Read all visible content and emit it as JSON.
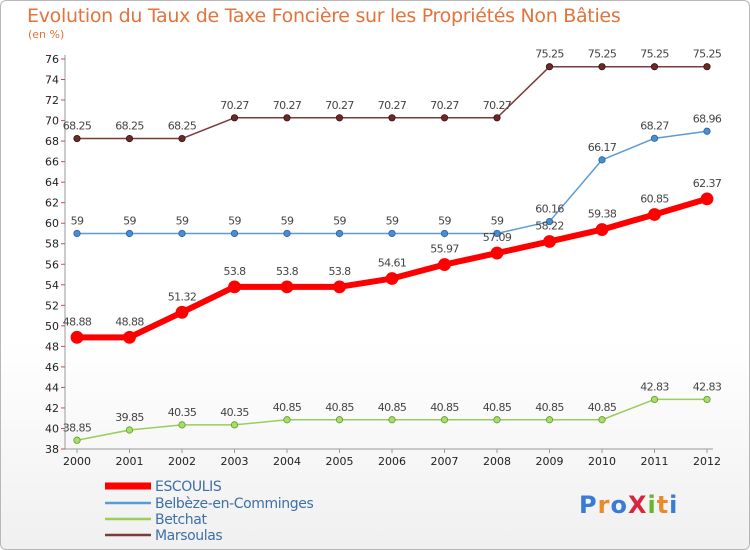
{
  "header": {
    "title": "Evolution du Taux de Taxe Foncière sur les Propriétés Non Bâties",
    "unit": "(en %)"
  },
  "logo": {
    "text": "ProXiti"
  },
  "colors": {
    "escoulis": "#ff0000",
    "belbeze": "#5b9bd5",
    "betchat": "#9acd5a",
    "marsoulas": "#7a3b3b"
  },
  "chart_data": {
    "type": "line",
    "title": "Evolution du Taux de Taxe Foncière sur les Propriétés Non Bâties",
    "ylabel": "(en %)",
    "xlabel": "",
    "ylim": [
      38,
      76
    ],
    "ytick_step": 2,
    "grid": false,
    "legend": "bottom-left",
    "categories": [
      "2000",
      "2001",
      "2002",
      "2003",
      "2004",
      "2005",
      "2006",
      "2007",
      "2008",
      "2009",
      "2010",
      "2011",
      "2012"
    ],
    "series": [
      {
        "name": "ESCOULIS",
        "values": [
          48.88,
          48.88,
          51.32,
          53.8,
          53.8,
          53.8,
          54.61,
          55.97,
          57.09,
          58.22,
          59.38,
          60.85,
          62.37
        ],
        "labels": [
          "48.88",
          "48.88",
          "51.32",
          "53.8",
          "53.8",
          "53.8",
          "54.61",
          "55.97",
          "57.09",
          "58.22",
          "59.38",
          "60.85",
          "62.37"
        ]
      },
      {
        "name": "Belbèze-en-Comminges",
        "values": [
          59,
          59,
          59,
          59,
          59,
          59,
          59,
          59,
          59,
          60.16,
          66.17,
          68.27,
          68.96
        ],
        "labels": [
          "59",
          "59",
          "59",
          "59",
          "59",
          "59",
          "59",
          "59",
          "59",
          "60.16",
          "66.17",
          "68.27",
          "68.96"
        ]
      },
      {
        "name": "Betchat",
        "values": [
          38.85,
          39.85,
          40.35,
          40.35,
          40.85,
          40.85,
          40.85,
          40.85,
          40.85,
          40.85,
          40.85,
          42.83,
          42.83
        ],
        "labels": [
          "38.85",
          "39.85",
          "40.35",
          "40.35",
          "40.85",
          "40.85",
          "40.85",
          "40.85",
          "40.85",
          "40.85",
          "40.85",
          "42.83",
          "42.83"
        ]
      },
      {
        "name": "Marsoulas",
        "values": [
          68.25,
          68.25,
          68.25,
          70.27,
          70.27,
          70.27,
          70.27,
          70.27,
          70.27,
          75.25,
          75.25,
          75.25,
          75.25
        ],
        "labels": [
          "68.25",
          "68.25",
          "68.25",
          "70.27",
          "70.27",
          "70.27",
          "70.27",
          "70.27",
          "70.27",
          "75.25",
          "75.25",
          "75.25",
          "75.25"
        ]
      }
    ]
  }
}
